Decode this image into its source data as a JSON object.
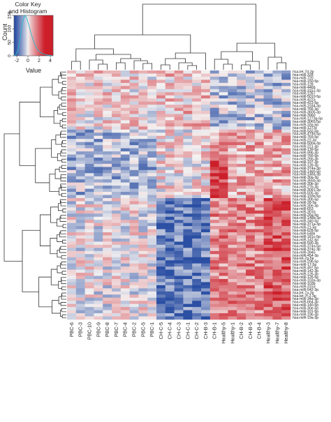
{
  "chart_data": {
    "type": "heatmap",
    "color_key": {
      "title": "Color Key and Histogram",
      "title_line1": "Color Key",
      "title_line2": "and Histogram",
      "ylabel": "Count",
      "xlabel": "Value",
      "x_ticks": [
        "-2",
        "0",
        "2",
        "4"
      ],
      "y_ticks": [
        "0",
        "50",
        "100",
        "150"
      ],
      "value_range": [
        -2.5,
        4.5
      ],
      "count_range": [
        0,
        150
      ]
    },
    "columns": [
      "PBC-6",
      "PBC-3",
      "PBC-10",
      "PBC-9",
      "PBC-8",
      "PBC-7",
      "PBC-4",
      "PBC-2",
      "PBC-5",
      "PBC-1",
      "CH-C-5",
      "CH-C-4",
      "CH-C-3",
      "CH-C-1",
      "CH-C-2",
      "CH-B-3",
      "CH-B-1",
      "Healthy-5",
      "Healthy-1",
      "CH-B-2",
      "CH-B-5",
      "CH-B-4",
      "Healthy-3",
      "Healthy-7",
      "Healthy-8"
    ],
    "rows": [
      "hsa-let-7d-3p",
      "hsa-miR-328",
      "hsa-miR-720",
      "hsa-miR-150-5p",
      "hsa-miR-128",
      "hsa-miR-4466",
      "hsa-miR-3157-3p",
      "hsa-miR-1267",
      "hsa-miR-5010-5p",
      "hsa-miR-422a",
      "hsa-miR-423-5p",
      "hsa-miR-3184-3p",
      "hsa-miR-766-3p",
      "hsa-miR-3605-3p",
      "hsa-miR-3960",
      "hsa-miR-1273g-5p",
      "hsa-miR-3065-5p",
      "hsa-miR-33a-5p",
      "hsa-miR-1273c",
      "hsa-miR-532-5p",
      "hsa-miR-4746-5p",
      "hsa-miR-769-5p",
      "hsa-miR-22-3p",
      "hsa-miR-500a-3p",
      "hsa-miR-221-3p",
      "hsa-miR-139-5p",
      "hsa-miR-99b-3p",
      "hsa-miR-766-5p",
      "hsa-miR-26b-3p",
      "hsa-miR-197-3p",
      "hsa-miR-139-3p",
      "hsa-miR-374a-3p",
      "hsa-miR-146b-5p",
      "hsa-miR-148a-3p",
      "hsa-miR-30a-3p",
      "hsa-miR-365b-3p",
      "hsa-miR-30b-3p",
      "hsa-miR-27b-3p",
      "hsa-miR-3091-3p",
      "hsa-miR-505-3p",
      "hsa-miR-193b-5p",
      "hsa-miR-30b-5p",
      "hsa-miR-28-5p",
      "hsa-miR-30e-3p",
      "hsa-miR-653",
      "hsa-miR-301b",
      "hsa-miR-26a-5p",
      "hsa-miR-148b-3p",
      "hsa-miR-340-5p",
      "hsa-miR-371a-3p",
      "hsa-miR-21-5p",
      "hsa-miR-628-5p",
      "hsa-miR-548k",
      "hsa-miR-181c-5p",
      "hsa-miR-142-5p",
      "hsa-miR-590-3p",
      "hsa-miR-374a-5p",
      "hsa-miR-374c-3p",
      "hsa-miR-3945",
      "hsa-miR-454-3p",
      "hsa-let-7g-5p",
      "hsa-miR-29b-5p",
      "hsa-miR-17-5p",
      "hsa-miR-497-5p",
      "hsa-miR-142-3p",
      "hsa-miR-126-3p",
      "hsa-miR-126-5p",
      "hsa-miR-103a-3p",
      "hsa-miR-103b",
      "hsa-miR-3153",
      "hsa-miR-542-3p",
      "hsa-let-7a-3p",
      "hsa-let-7f-2-3p",
      "hsa-miR-34a-3p",
      "hsa-miR-664-3p",
      "hsa-miR-140-5p",
      "hsa-miR-30e-5p",
      "hsa-miR-101-5p",
      "hsa-miR-19b-3p",
      "hsa-miR-19a-3p"
    ],
    "clusters": {
      "column_groups": [
        [
          "PBC-6",
          "PBC-3"
        ],
        [
          "PBC-10",
          "PBC-9",
          "PBC-8"
        ],
        [
          "PBC-7",
          "PBC-4"
        ],
        [
          "PBC-2",
          "PBC-5",
          "PBC-1"
        ],
        [
          "CH-C-5",
          "CH-C-4",
          "CH-C-3",
          "CH-C-1",
          "CH-C-2",
          "CH-B-3"
        ],
        [
          "CH-B-1",
          "Healthy-5",
          "Healthy-1"
        ],
        [
          "CH-B-2",
          "CH-B-5",
          "CH-B-4"
        ],
        [
          "Healthy-3",
          "Healthy-7",
          "Healthy-8"
        ]
      ],
      "row_groups": [
        [
          "hsa-let-7d-3p",
          "hsa-miR-1273c"
        ],
        [
          "hsa-miR-532-5p",
          "hsa-miR-193b-5p"
        ],
        [
          "hsa-miR-30b-5p",
          "hsa-miR-19a-3p"
        ]
      ]
    },
    "colors": {
      "low": "#2b4fa3",
      "mid": "#f4f2f2",
      "high": "#cc1f2a"
    }
  }
}
